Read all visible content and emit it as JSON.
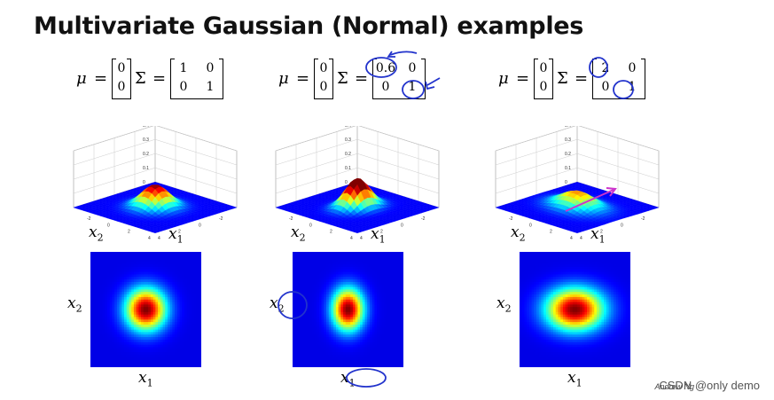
{
  "title": "Multivariate Gaussian (Normal) examples",
  "panels": [
    {
      "mu": [
        "0",
        "0"
      ],
      "sigma": [
        [
          "1",
          "0"
        ],
        [
          "0",
          "1"
        ]
      ],
      "sigma_x": 1,
      "sigma_y": 1,
      "x_label": "x",
      "x_sub": "1",
      "y_label": "x",
      "y_sub": "2",
      "z_ticks": [
        "0.4",
        "0.3",
        "0.2",
        "0.1",
        "0"
      ],
      "xy_ticks": [
        "-4",
        "-2",
        "0",
        "2",
        "4"
      ]
    },
    {
      "mu": [
        "0",
        "0"
      ],
      "sigma": [
        [
          "0.6",
          "0"
        ],
        [
          "0",
          "1"
        ]
      ],
      "sigma_x": 0.6,
      "sigma_y": 1,
      "x_label": "x",
      "x_sub": "1",
      "y_label": "x",
      "y_sub": "2",
      "z_ticks": [
        "0.4",
        "0.3",
        "0.2",
        "0.1",
        "0"
      ],
      "xy_ticks": [
        "-4",
        "-2",
        "0",
        "2",
        "4"
      ]
    },
    {
      "mu": [
        "0",
        "0"
      ],
      "sigma": [
        [
          "2",
          "0"
        ],
        [
          "0",
          "1"
        ]
      ],
      "sigma_x": 2,
      "sigma_y": 1,
      "x_label": "x",
      "x_sub": "1",
      "y_label": "x",
      "y_sub": "2",
      "z_ticks": [
        "0.4",
        "0.3",
        "0.2",
        "0.1",
        "0"
      ],
      "xy_ticks": [
        "-4",
        "-2",
        "0",
        "2",
        "4"
      ]
    }
  ],
  "symbols": {
    "mu": "μ",
    "eq": "=",
    "Sigma": "Σ"
  },
  "watermark": "CSDN @only demo",
  "signature": "Andrew Ng",
  "annotation_color": "#2233cc",
  "arrow_color": "#cc33cc"
}
